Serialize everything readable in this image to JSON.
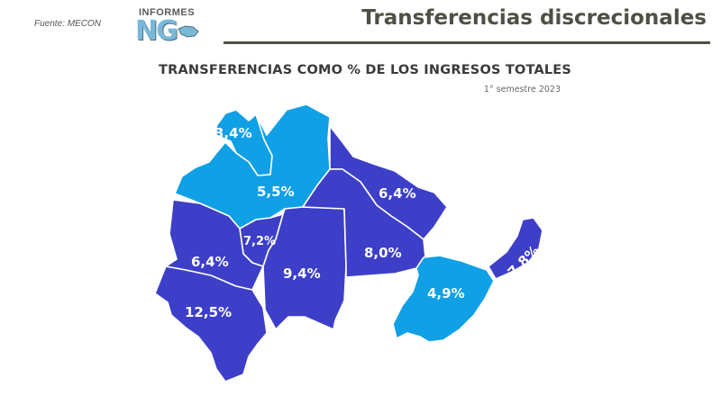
{
  "header": {
    "source": "Fuente: MECON",
    "logo_top": "INFORMES",
    "logo_big": "NG",
    "title": "Transferencias discrecionales"
  },
  "map": {
    "title": "TRANSFERENCIAS COMO % DE LOS INGRESOS TOTALES",
    "subtitle": "1° semestre 2023",
    "colors": {
      "light": "#0fa0e6",
      "dark": "#3d3fc8",
      "border": "#ffffff"
    },
    "regions": [
      {
        "id": "north-inner",
        "label": "3,4%",
        "value": 3.4,
        "color_class": "light"
      },
      {
        "id": "north",
        "label": "5,5%",
        "value": 5.5,
        "color_class": "light"
      },
      {
        "id": "northeast",
        "label": "6,4%",
        "value": 6.4,
        "color_class": "dark"
      },
      {
        "id": "center-north",
        "label": "7,2%",
        "value": 7.2,
        "color_class": "dark"
      },
      {
        "id": "west",
        "label": "6,4%",
        "value": 6.4,
        "color_class": "dark"
      },
      {
        "id": "center",
        "label": "9,4%",
        "value": 9.4,
        "color_class": "dark"
      },
      {
        "id": "east",
        "label": "8,0%",
        "value": 8.0,
        "color_class": "dark"
      },
      {
        "id": "southwest",
        "label": "12,5%",
        "value": 12.5,
        "color_class": "dark"
      },
      {
        "id": "southeast",
        "label": "4,9%",
        "value": 4.9,
        "color_class": "light"
      },
      {
        "id": "far-east",
        "label": "7,8%",
        "value": 7.8,
        "color_class": "dark"
      }
    ]
  }
}
